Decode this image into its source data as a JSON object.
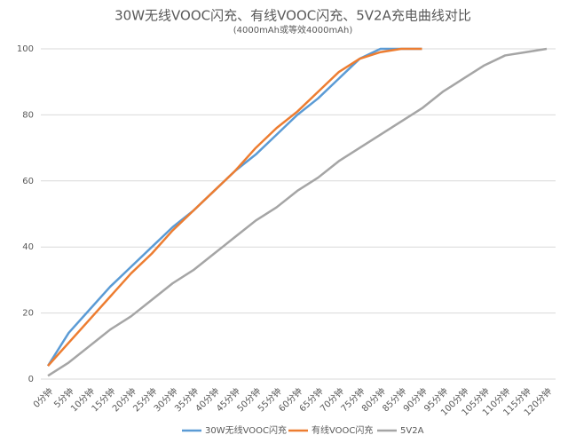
{
  "chart_data": {
    "type": "line",
    "title": "30W无线VOOC闪充、有线VOOC闪充、5V2A充电曲线对比",
    "subtitle": "(4000mAh或等效4000mAh)",
    "categories": [
      "0分钟",
      "5分钟",
      "10分钟",
      "15分钟",
      "20分钟",
      "25分钟",
      "30分钟",
      "35分钟",
      "40分钟",
      "45分钟",
      "50分钟",
      "55分钟",
      "60分钟",
      "65分钟",
      "70分钟",
      "75分钟",
      "80分钟",
      "85分钟",
      "90分钟",
      "95分钟",
      "100分钟",
      "105分钟",
      "110分钟",
      "115分钟",
      "120分钟"
    ],
    "series": [
      {
        "name": "30W无线VOOC闪充",
        "color": "#5b9bd5",
        "values": [
          4,
          14,
          21,
          28,
          34,
          40,
          46,
          51,
          57,
          63,
          68,
          74,
          80,
          85,
          91,
          97,
          100,
          100,
          100,
          null,
          null,
          null,
          null,
          null,
          null
        ]
      },
      {
        "name": "有线VOOC闪充",
        "color": "#ed7d31",
        "values": [
          4,
          11,
          18,
          25,
          32,
          38,
          45,
          51,
          57,
          63,
          70,
          76,
          81,
          87,
          93,
          97,
          99,
          100,
          100,
          null,
          null,
          null,
          null,
          null,
          null
        ]
      },
      {
        "name": "5V2A",
        "color": "#a5a5a5",
        "values": [
          1,
          5,
          10,
          15,
          19,
          24,
          29,
          33,
          38,
          43,
          48,
          52,
          57,
          61,
          66,
          70,
          74,
          78,
          82,
          87,
          91,
          95,
          98,
          99,
          100
        ]
      }
    ],
    "ylim": [
      0,
      100
    ],
    "yticks": [
      0,
      20,
      40,
      60,
      80,
      100
    ],
    "grid": true,
    "legend": "bottom"
  }
}
